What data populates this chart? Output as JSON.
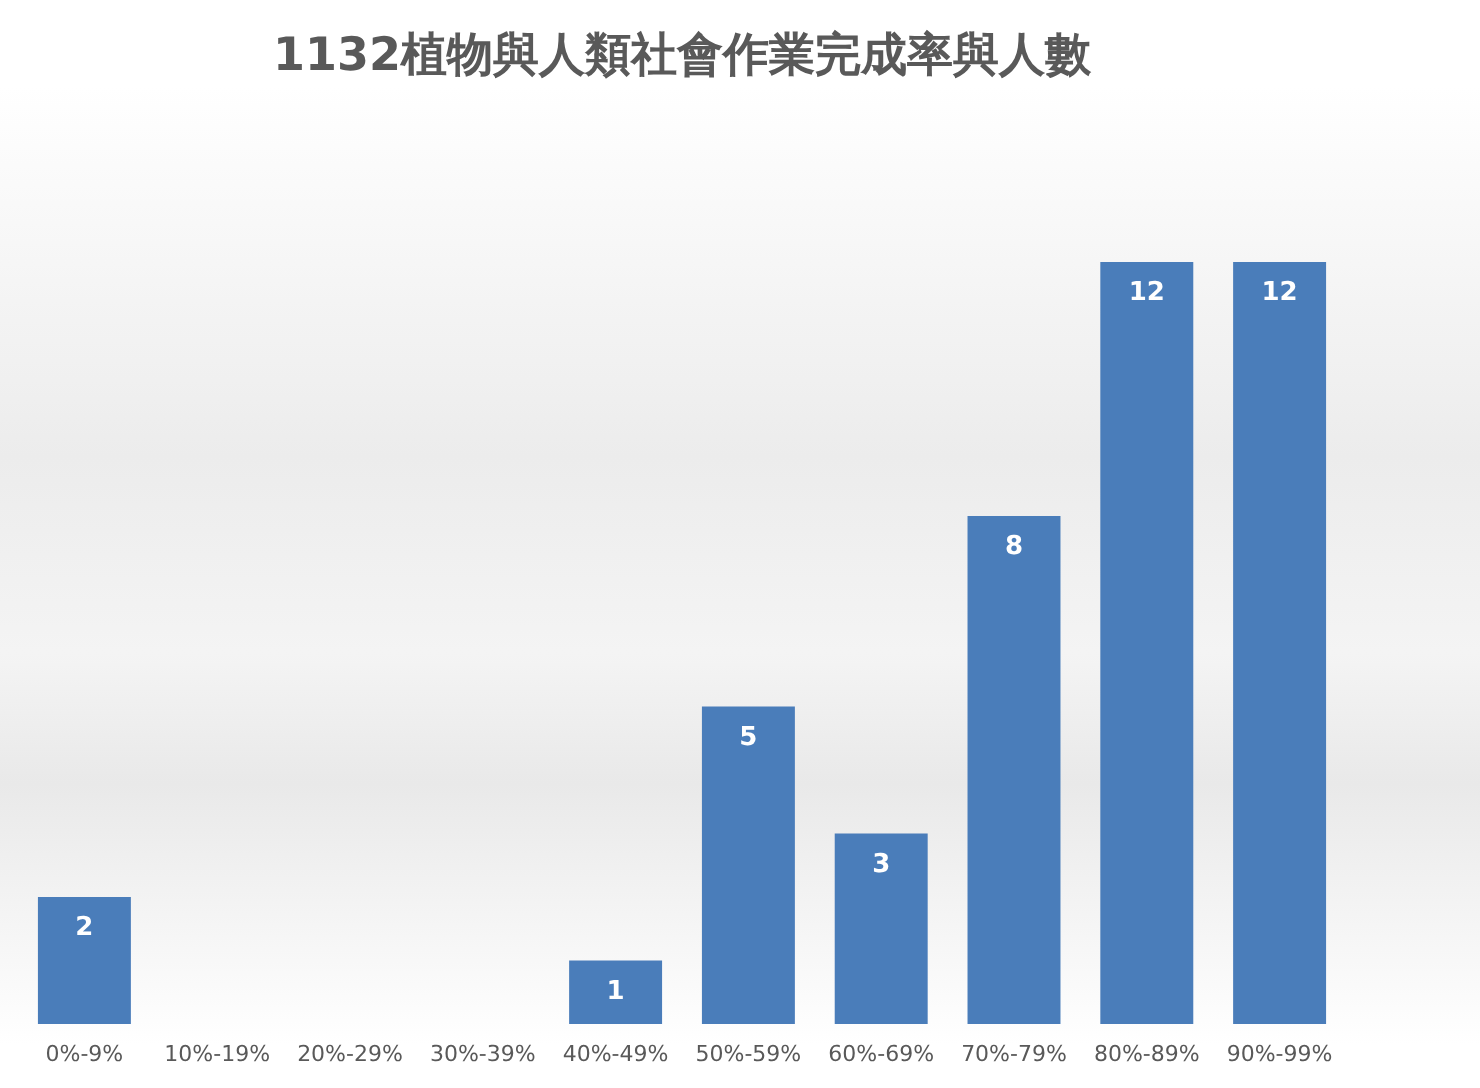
{
  "chart_data": {
    "type": "bar",
    "title": "1132植物與人類社會作業完成率與人數",
    "categories": [
      "0%-9%",
      "10%-19%",
      "20%-29%",
      "30%-39%",
      "40%-49%",
      "50%-59%",
      "60%-69%",
      "70%-79%",
      "80%-89%",
      "90%-99%"
    ],
    "values": [
      2,
      0,
      0,
      0,
      1,
      5,
      3,
      8,
      12,
      12
    ],
    "value_labels": [
      "2",
      null,
      null,
      null,
      "1",
      "5",
      "3",
      "8",
      "12",
      "12"
    ],
    "color": "#4a7dba",
    "tick_labels": "x"
  }
}
